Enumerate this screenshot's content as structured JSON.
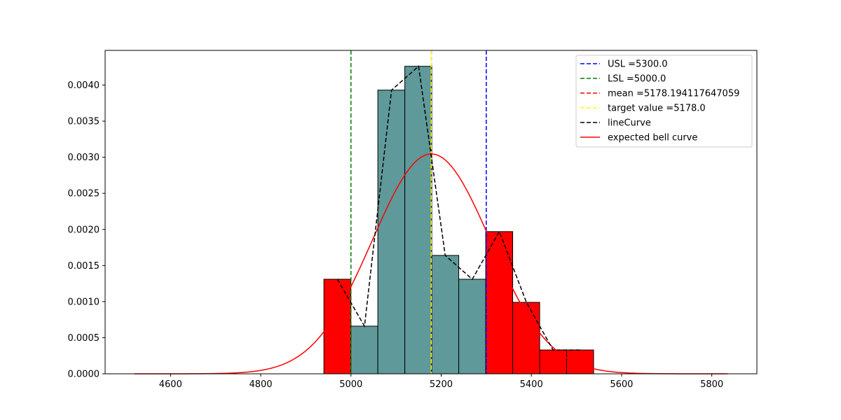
{
  "chart_data": {
    "type": "bar",
    "title": "",
    "xlabel": "",
    "ylabel": "",
    "xlim": [
      4455,
      5900
    ],
    "ylim": [
      0,
      0.00448
    ],
    "x_ticks": [
      4600,
      4800,
      5000,
      5200,
      5400,
      5600,
      5800
    ],
    "y_ticks": [
      0.0,
      0.0005,
      0.001,
      0.0015,
      0.002,
      0.0025,
      0.003,
      0.0035,
      0.004
    ],
    "y_tick_labels": [
      "0.0000",
      "0.0005",
      "0.0010",
      "0.0015",
      "0.0020",
      "0.0025",
      "0.0030",
      "0.0035",
      "0.0040"
    ],
    "histogram": {
      "bin_edges": [
        4940,
        4999.8,
        5059.6,
        5119.4,
        5179.2,
        5239,
        5298.8,
        5358.6,
        5418.4,
        5478.2,
        5538
      ],
      "densities": [
        0.00131,
        0.00066,
        0.00393,
        0.00426,
        0.00164,
        0.00131,
        0.00197,
        0.00099,
        0.00033,
        0.00033
      ],
      "in_spec_color": "#5f9999",
      "out_of_spec_color": "#ff0000",
      "edge_color": "#000000"
    },
    "series": [
      {
        "name": "lineCurve",
        "style": "dashed",
        "color": "#000000",
        "x": [
          4970,
          5030,
          5090,
          5150,
          5209,
          5269,
          5329,
          5389,
          5448,
          5508
        ],
        "y": [
          0.00131,
          0.00066,
          0.00393,
          0.00426,
          0.00164,
          0.00131,
          0.00197,
          0.00099,
          0.00033,
          0.00033
        ]
      },
      {
        "name": "expected bell curve",
        "style": "solid",
        "color": "#ff0000",
        "mean": 5178.19,
        "std": 131,
        "x_range": [
          4520,
          5835
        ]
      }
    ],
    "vlines": [
      {
        "name": "USL =5300.0",
        "x": 5300,
        "color": "#0000ff",
        "style": "dashed"
      },
      {
        "name": "LSL =5000.0",
        "x": 5000,
        "color": "#008000",
        "style": "dashed"
      },
      {
        "name": "mean =5178.194117647059",
        "x": 5178.194117647059,
        "color": "#ff0000",
        "style": "dashed"
      },
      {
        "name": "target value =5178.0",
        "x": 5178,
        "color": "#ffff00",
        "style": "dashed"
      }
    ],
    "legend": {
      "position": "top-right",
      "entries": [
        {
          "label": "USL =5300.0",
          "color": "#0000ff",
          "style": "dashed"
        },
        {
          "label": "LSL =5000.0",
          "color": "#008000",
          "style": "dashed"
        },
        {
          "label": "mean =5178.194117647059",
          "color": "#ff0000",
          "style": "dashed"
        },
        {
          "label": "target value =5178.0",
          "color": "#ffff00",
          "style": "dashed"
        },
        {
          "label": "lineCurve",
          "color": "#000000",
          "style": "dashed"
        },
        {
          "label": "expected bell curve",
          "color": "#ff0000",
          "style": "solid"
        }
      ]
    },
    "grid": false
  }
}
